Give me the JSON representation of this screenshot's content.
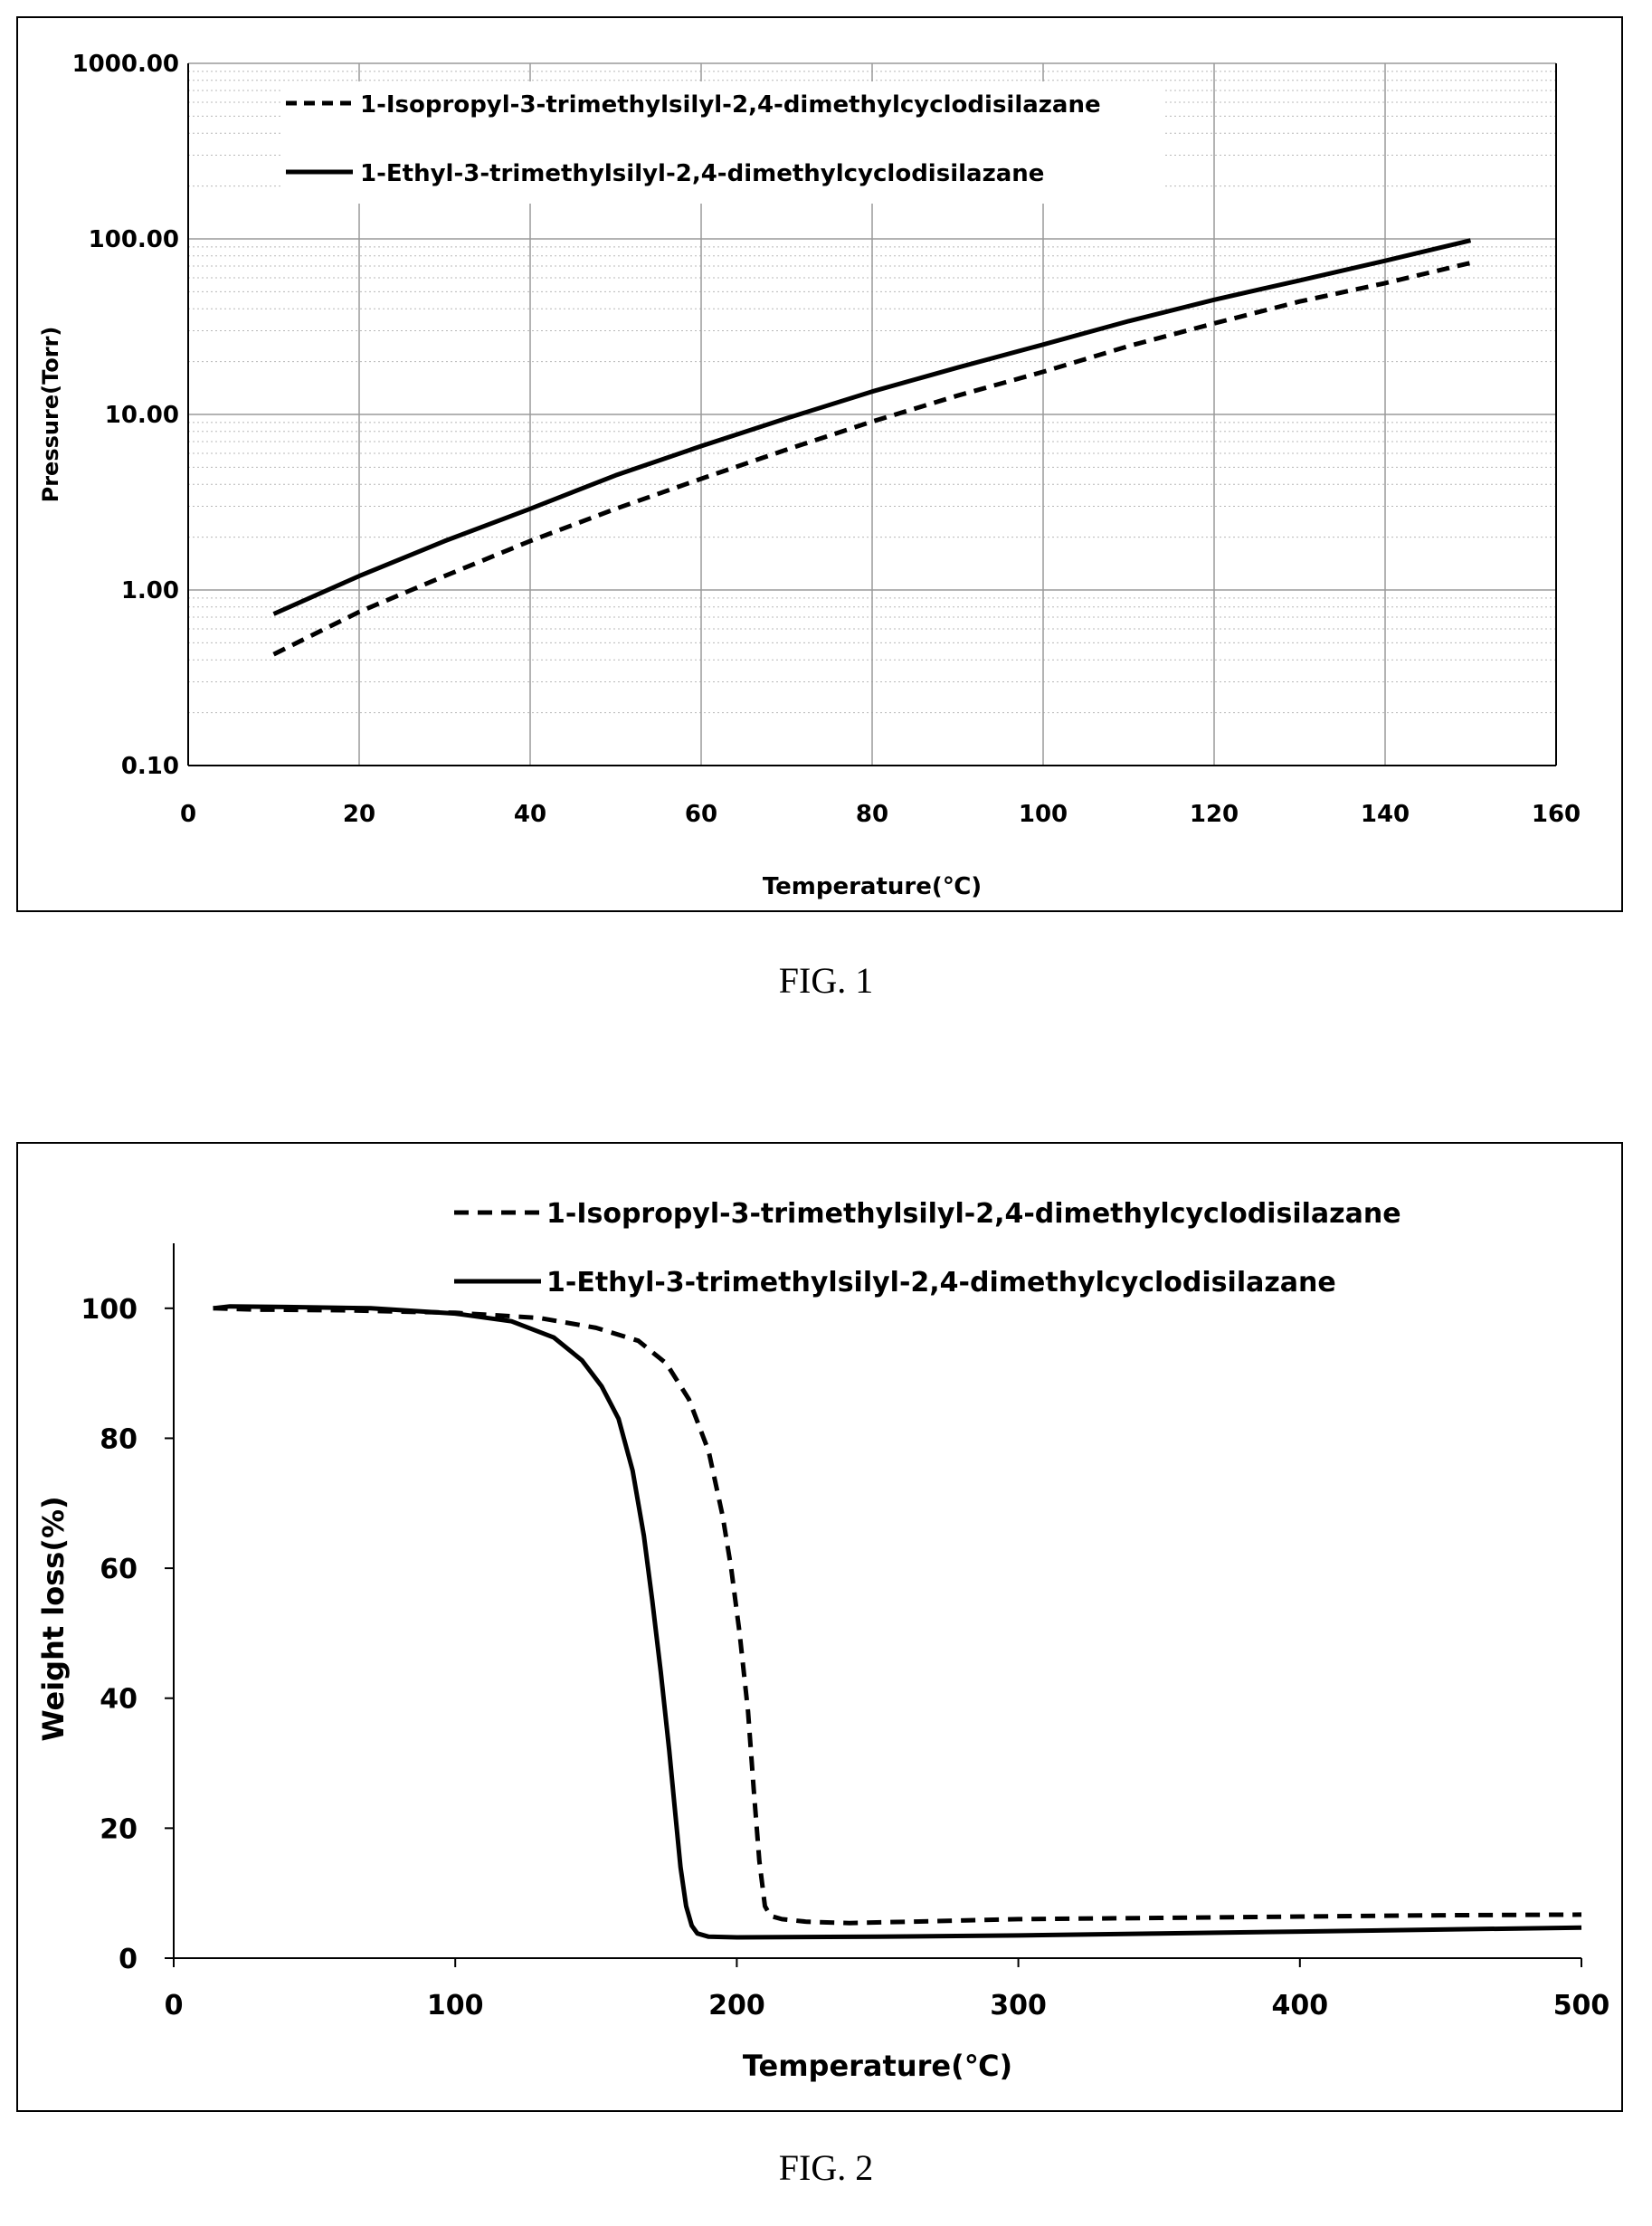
{
  "figures": [
    {
      "caption": "FIG. 1"
    },
    {
      "caption": "FIG. 2"
    }
  ],
  "chart_data": [
    {
      "type": "line",
      "xlabel": "Temperature(℃)",
      "ylabel": "Pressure(Torr)",
      "xlim": [
        0,
        160
      ],
      "ylim": [
        0.1,
        1000
      ],
      "y_scale": "log",
      "x_ticks": [
        "0",
        "20",
        "40",
        "60",
        "80",
        "100",
        "120",
        "140",
        "160"
      ],
      "y_ticks": [
        "0.10",
        "1.00",
        "10.00",
        "100.00",
        "1000.00"
      ],
      "grid": true,
      "legend_position": "top-left",
      "series": [
        {
          "name": "1-Isopropyl-3-trimethylsilyl-2,4-dimethylcyclodisilazane",
          "style": "dashed",
          "color": "#000000",
          "x": [
            10,
            20,
            30,
            40,
            50,
            60,
            70,
            80,
            90,
            100,
            110,
            120,
            130,
            140,
            150
          ],
          "y": [
            0.43,
            0.75,
            1.2,
            1.9,
            2.9,
            4.3,
            6.3,
            9.1,
            12.8,
            17.5,
            24.5,
            33,
            44,
            56,
            73
          ]
        },
        {
          "name": "1-Ethyl-3-trimethylsilyl-2,4-dimethylcyclodisilazane",
          "style": "solid",
          "color": "#000000",
          "x": [
            10,
            20,
            30,
            40,
            50,
            60,
            70,
            80,
            90,
            100,
            110,
            120,
            130,
            140,
            150
          ],
          "y": [
            0.73,
            1.2,
            1.9,
            2.9,
            4.5,
            6.6,
            9.5,
            13.5,
            18.5,
            25,
            34,
            45,
            58,
            75,
            98
          ]
        }
      ]
    },
    {
      "type": "line",
      "xlabel": "Temperature(℃)",
      "ylabel": "Weight loss(%)",
      "xlim": [
        0,
        500
      ],
      "ylim": [
        0,
        110
      ],
      "x_ticks": [
        "0",
        "100",
        "200",
        "300",
        "400",
        "500"
      ],
      "y_ticks": [
        "0",
        "20",
        "40",
        "60",
        "80",
        "100"
      ],
      "grid": false,
      "legend_position": "top-right",
      "series": [
        {
          "name": "1-Isopropyl-3-trimethylsilyl-2,4-dimethylcyclodisilazane",
          "style": "dashed",
          "color": "#000000",
          "x": [
            14,
            30,
            60,
            100,
            130,
            150,
            165,
            175,
            183,
            190,
            195,
            198,
            201,
            204,
            206,
            208,
            210,
            212,
            216,
            225,
            240,
            270,
            300,
            350,
            400,
            450,
            500
          ],
          "y": [
            100,
            99.8,
            99.7,
            99.3,
            98.5,
            97,
            95,
            91.5,
            86,
            78,
            68,
            60,
            50,
            38,
            26,
            15,
            8,
            6.5,
            6,
            5.6,
            5.4,
            5.7,
            6,
            6.2,
            6.4,
            6.6,
            6.7
          ]
        },
        {
          "name": "1-Ethyl-3-trimethylsilyl-2,4-dimethylcyclodisilazane",
          "style": "solid",
          "color": "#000000",
          "x": [
            14,
            20,
            40,
            70,
            100,
            120,
            135,
            145,
            152,
            158,
            163,
            167,
            170,
            173,
            176,
            178,
            180,
            182,
            184,
            186,
            190,
            200,
            250,
            300,
            350,
            400,
            450,
            500
          ],
          "y": [
            100,
            100.3,
            100.2,
            100,
            99.2,
            98,
            95.5,
            92,
            88,
            83,
            75,
            65,
            55,
            44,
            32,
            23,
            14,
            8,
            5,
            3.8,
            3.3,
            3.2,
            3.3,
            3.5,
            3.8,
            4.1,
            4.4,
            4.7
          ]
        }
      ]
    }
  ]
}
